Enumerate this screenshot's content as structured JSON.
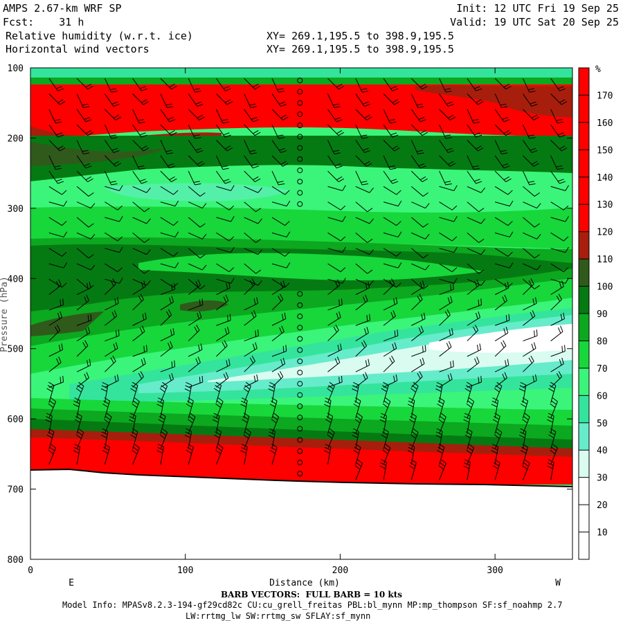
{
  "header": {
    "model": "AMPS 2.67-km WRF SP",
    "fcst": "Fcst:    31 h",
    "field1": "Relative humidity (w.r.t. ice)",
    "field2": "Horizontal wind vectors",
    "init": "Init: 12 UTC Fri 19 Sep 25",
    "valid": "Valid: 19 UTC Sat 20 Sep 25",
    "xy1": "XY= 269.1,195.5 to 398.9,195.5",
    "xy2": "XY= 269.1,195.5 to 398.9,195.5"
  },
  "footer": {
    "barb_note": "BARB VECTORS:  FULL BARB = 10 kts",
    "model_info": "Model Info: MPASv8.2.3-194-gf29cd82c CU:cu_grell_freitas PBL:bl_mynn MP:mp_thompson SF:sf_noahmp 2.7",
    "model_info2": "LW:rrtmg_lw SW:rrtmg_sw SFLAY:sf_mynn"
  },
  "chart_data": {
    "type": "heatmap",
    "title": "Relative humidity (w.r.t. ice) and horizontal wind vectors cross-section",
    "xlabel": "Distance (km)",
    "ylabel": "Pressure (hPa)",
    "x_left_label": "E",
    "x_right_label": "W",
    "xlim": [
      0,
      350
    ],
    "ylim": [
      800,
      100
    ],
    "x_ticks": [
      0,
      100,
      200,
      300
    ],
    "y_ticks": [
      100,
      200,
      300,
      400,
      500,
      600,
      700,
      800
    ],
    "colorbar": {
      "unit": "%",
      "levels": [
        10,
        20,
        30,
        40,
        50,
        60,
        70,
        80,
        90,
        100,
        110,
        120,
        130,
        140,
        150,
        160,
        170
      ],
      "colors": [
        "#ffffff",
        "#ffffff",
        "#ffffff",
        "#d9fbf0",
        "#66ecca",
        "#34e49c",
        "#3af579",
        "#17d73b",
        "#0ca81f",
        "#057a12",
        "#2f5a1b",
        "#a81e0c",
        "#ff0000",
        "#ff0000",
        "#ff0000",
        "#ff0000",
        "#ff0000",
        "#ff0000"
      ]
    },
    "layers": [
      {
        "name": "surface terrain",
        "x": [
          0,
          50,
          100,
          150,
          175,
          200,
          250,
          300,
          350
        ],
        "pressure_hPa": [
          670,
          673,
          680,
          688,
          690,
          692,
          693,
          694,
          695
        ]
      },
      {
        "name": "low-level saturated layer (RH>120)",
        "p_top_hPa": 625,
        "p_bottom": "surface"
      },
      {
        "name": "dry tongue (RH<40)",
        "x": [
          100,
          200,
          300,
          350
        ],
        "pressure_hPa": [
          545,
          525,
          490,
          460
        ]
      },
      {
        "name": "upper saturated layer (RH>120)",
        "p_top_hPa": 115,
        "p_bottom_hPa": 200
      },
      {
        "name": "mid-level moist layer (RH 90-110)",
        "p_top_hPa": 350,
        "p_bottom_hPa": 470
      }
    ],
    "wind_barb_legend": "FULL BARB = 10 kts"
  }
}
